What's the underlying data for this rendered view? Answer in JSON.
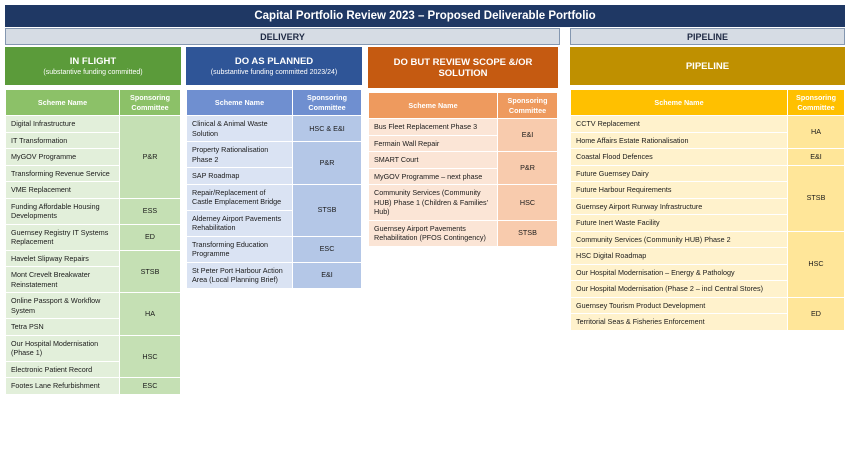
{
  "title": "Capital Portfolio Review 2023 – Proposed Deliverable Portfolio",
  "sections": [
    "DELIVERY",
    "PIPELINE"
  ],
  "columns": [
    {
      "title": "IN FLIGHT",
      "subtitle": "(substantive funding committed)",
      "headers": [
        "Scheme Name",
        "Sponsoring Committee"
      ],
      "groups": [
        {
          "committee": "P&R",
          "schemes": [
            "Digital Infrastructure",
            "IT Transformation",
            "MyGOV Programme",
            "Transforming Revenue Service",
            "VME Replacement"
          ]
        },
        {
          "committee": "ESS",
          "schemes": [
            "Funding Affordable Housing Developments"
          ]
        },
        {
          "committee": "ED",
          "schemes": [
            "Guernsey Registry IT Systems Replacement"
          ]
        },
        {
          "committee": "STSB",
          "schemes": [
            "Havelet Slipway Repairs",
            "Mont Crevelt Breakwater Reinstatement"
          ]
        },
        {
          "committee": "HA",
          "schemes": [
            "Online Passport & Workflow System",
            "Tetra PSN"
          ]
        },
        {
          "committee": "HSC",
          "schemes": [
            "Our Hospital Modernisation (Phase 1)",
            "Electronic Patient Record"
          ]
        },
        {
          "committee": "ESC",
          "schemes": [
            "Footes Lane Refurbishment"
          ]
        }
      ]
    },
    {
      "title": "DO AS PLANNED",
      "subtitle": "(substantive funding committed 2023/24)",
      "headers": [
        "Scheme Name",
        "Sponsoring Committee"
      ],
      "groups": [
        {
          "committee": "HSC & E&I",
          "schemes": [
            "Clinical & Animal Waste Solution"
          ]
        },
        {
          "committee": "P&R",
          "schemes": [
            "Property Rationalisation Phase 2",
            "SAP Roadmap"
          ]
        },
        {
          "committee": "STSB",
          "schemes": [
            "Repair/Replacement of Castle Emplacement Bridge",
            "Alderney Airport Pavements Rehabilitation"
          ]
        },
        {
          "committee": "ESC",
          "schemes": [
            "Transforming Education Programme"
          ]
        },
        {
          "committee": "E&I",
          "schemes": [
            "St Peter Port Harbour Action Area (Local Planning Brief)"
          ]
        }
      ]
    },
    {
      "title": "DO BUT REVIEW SCOPE &/OR SOLUTION",
      "headers": [
        "Scheme Name",
        "Sponsoring Committee"
      ],
      "groups": [
        {
          "committee": "E&I",
          "schemes": [
            "Bus Fleet Replacement Phase 3",
            "Fermain Wall Repair"
          ]
        },
        {
          "committee": "P&R",
          "schemes": [
            "SMART Court",
            "MyGOV Programme – next phase"
          ]
        },
        {
          "committee": "HSC",
          "schemes": [
            "Community Services (Community HUB) Phase 1 (Children & Families’ Hub)"
          ]
        },
        {
          "committee": "STSB",
          "schemes": [
            "Guernsey Airport Pavements Rehabilitation (PFOS Contingency)"
          ]
        }
      ]
    },
    {
      "title": "PIPELINE",
      "headers": [
        "Scheme Name",
        "Sponsoring Committee"
      ],
      "groups": [
        {
          "committee": "HA",
          "schemes": [
            "CCTV Replacement",
            "Home Affairs Estate Rationalisation"
          ]
        },
        {
          "committee": "E&I",
          "schemes": [
            "Coastal Flood Defences"
          ]
        },
        {
          "committee": "STSB",
          "schemes": [
            "Future Guernsey Dairy",
            "Future Harbour Requirements",
            "Guernsey Airport Runway Infrastructure",
            "Future Inert Waste Facility"
          ]
        },
        {
          "committee": "HSC",
          "schemes": [
            "Community Services (Community HUB) Phase 2",
            "HSC Digital Roadmap",
            "Our Hospital Modernisation – Energy & Pathology",
            "Our Hospital Modernisation (Phase 2 – incl Central Stores)"
          ]
        },
        {
          "committee": "ED",
          "schemes": [
            "Guernsey Tourism Product Development",
            "Territorial Seas & Fisheries Enforcement"
          ]
        }
      ]
    }
  ]
}
